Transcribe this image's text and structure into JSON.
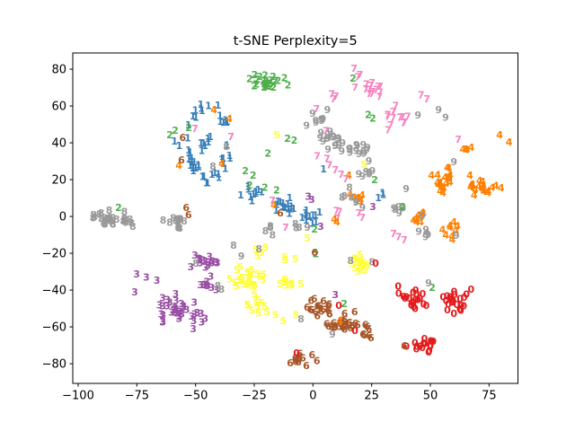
{
  "figure": {
    "background": "#ffffff",
    "frame_color": "#000000"
  },
  "chart_data": {
    "type": "scatter",
    "title": "t-SNE Perplexity=5",
    "xlabel": "",
    "ylabel": "",
    "grid": false,
    "legend": "none",
    "marker_style": "digit glyphs colored by class (Set1 palette, bold text markers)",
    "xlim": [
      -102.3,
      87.3
    ],
    "ylim": [
      -90.7,
      88.8
    ],
    "xticks": [
      -100,
      -75,
      -50,
      -25,
      0,
      25,
      50,
      75
    ],
    "yticks": [
      -80,
      -60,
      -40,
      -20,
      0,
      20,
      40,
      60,
      80
    ],
    "palette": {
      "0": "#e41a1c",
      "1": "#377eb8",
      "2": "#4daf4a",
      "3": "#984ea3",
      "4": "#ff7f00",
      "5": "#ffff33",
      "6": "#a65628",
      "7": "#f781bf",
      "8": "#999999",
      "9": "#999999"
    },
    "clusters": [
      {
        "d": "2",
        "x": -19.5,
        "y": 72.5,
        "sx": 8,
        "sy": 4,
        "n": 26
      },
      {
        "d": "1",
        "shape": "ring",
        "x": -44.5,
        "y": 40.5,
        "rx": 8.5,
        "ry": 19,
        "n": 46
      },
      {
        "d": "1",
        "x": -47,
        "y": 40,
        "sx": 2.5,
        "sy": 3,
        "n": 8
      },
      {
        "d": "1",
        "x": -24,
        "y": 13,
        "sx": 5,
        "sy": 3.5,
        "n": 10
      },
      {
        "d": "1",
        "x": -12,
        "y": 6.5,
        "sx": 6,
        "sy": 4.5,
        "n": 14
      },
      {
        "d": "1",
        "x": -2,
        "y": 0,
        "sx": 5,
        "sy": 4,
        "n": 12
      },
      {
        "d": "1",
        "x": 29.8,
        "y": 12,
        "sx": 1.8,
        "sy": 2.2,
        "n": 3
      },
      {
        "d": "3",
        "x": -58,
        "y": -51,
        "sx": 8,
        "sy": 6.5,
        "n": 34
      },
      {
        "d": "3",
        "x": -45,
        "y": -24,
        "sx": 6.5,
        "sy": 4,
        "n": 16
      },
      {
        "d": "3",
        "x": -43,
        "y": -36.5,
        "sx": 5,
        "sy": 4,
        "n": 9
      },
      {
        "d": "3",
        "x": -46.5,
        "y": -55.5,
        "sx": 2,
        "sy": 2,
        "n": 3
      },
      {
        "d": "5",
        "x": -28,
        "y": -33,
        "sx": 7,
        "sy": 6,
        "n": 26
      },
      {
        "d": "5",
        "x": -24,
        "y": -48,
        "sx": 4,
        "sy": 4,
        "n": 10
      },
      {
        "d": "5",
        "x": -10,
        "y": -36,
        "sx": 4.5,
        "sy": 3,
        "n": 8
      },
      {
        "d": "5",
        "x": -10,
        "y": -24,
        "sx": 3,
        "sy": 2.5,
        "n": 3
      },
      {
        "d": "5",
        "x": 21,
        "y": -25,
        "sx": 4.5,
        "sy": 3.5,
        "n": 15
      },
      {
        "d": "5",
        "x": -22.5,
        "y": -19,
        "sx": 3.5,
        "sy": 2.5,
        "n": 4
      },
      {
        "d": "4",
        "x": 55.5,
        "y": 20,
        "sx": 5,
        "sy": 6.5,
        "n": 20
      },
      {
        "d": "4",
        "x": 71,
        "y": 16,
        "sx": 6,
        "sy": 5,
        "n": 20
      },
      {
        "d": "4",
        "x": 46.5,
        "y": -0.5,
        "sx": 3.5,
        "sy": 4,
        "n": 9
      },
      {
        "d": "4",
        "x": 58,
        "y": -8.5,
        "sx": 3,
        "sy": 5,
        "n": 9
      },
      {
        "d": "4",
        "x": 65.5,
        "y": 37.5,
        "sx": 2.5,
        "sy": 2.5,
        "n": 4
      },
      {
        "d": "4",
        "x": 19,
        "y": 10.5,
        "sx": 3.5,
        "sy": 4,
        "n": 7
      },
      {
        "d": "7",
        "x": 24,
        "y": 70,
        "sx": 5.5,
        "sy": 6,
        "n": 15
      },
      {
        "d": "7",
        "x": 35,
        "y": 54,
        "sx": 5,
        "sy": 5.5,
        "n": 13
      },
      {
        "d": "7",
        "x": 10,
        "y": 65.5,
        "sx": 2.5,
        "sy": 3,
        "n": 3
      },
      {
        "d": "7",
        "x": 10.5,
        "y": 1.5,
        "sx": 2,
        "sy": 2.5,
        "n": 3
      },
      {
        "d": "8",
        "x": -85,
        "y": -1.5,
        "sx": 7.5,
        "sy": 4,
        "n": 30
      },
      {
        "d": "8",
        "x": -57.5,
        "y": -3.5,
        "sx": 5,
        "sy": 4,
        "n": 12
      },
      {
        "d": "9",
        "x": 8,
        "y": 42,
        "sx": 5,
        "sy": 5,
        "n": 16
      },
      {
        "d": "9",
        "x": 20,
        "y": 36,
        "sx": 6,
        "sy": 5,
        "n": 14
      },
      {
        "d": "9",
        "x": 23,
        "y": 23,
        "sx": 3.5,
        "sy": 3,
        "n": 6
      },
      {
        "d": "9",
        "x": 2,
        "y": 54,
        "sx": 4,
        "sy": 4.5,
        "n": 8
      },
      {
        "d": "8",
        "x": 14,
        "y": 12.5,
        "sx": 3,
        "sy": 3,
        "n": 4
      },
      {
        "d": "9",
        "x": 19,
        "y": 6,
        "sx": 2,
        "sy": 2.5,
        "n": 3
      },
      {
        "d": "9",
        "x": 37,
        "y": 3.5,
        "sx": 5,
        "sy": 3,
        "n": 5
      },
      {
        "d": "9",
        "x": 47,
        "y": -8,
        "sx": 4,
        "sy": 3.5,
        "n": 5
      },
      {
        "d": "8",
        "x": -16.5,
        "y": -7,
        "sx": 3,
        "sy": 2.5,
        "n": 4
      },
      {
        "d": "8",
        "x": -6,
        "y": -6.5,
        "sx": 2.5,
        "sy": 2,
        "n": 3
      },
      {
        "d": "6",
        "x": 2,
        "y": -50,
        "sx": 6,
        "sy": 5,
        "n": 16
      },
      {
        "d": "6",
        "x": 13,
        "y": -58,
        "sx": 7,
        "sy": 6,
        "n": 24
      },
      {
        "d": "6",
        "x": 22,
        "y": -62,
        "sx": 4,
        "sy": 5,
        "n": 8
      },
      {
        "d": "6",
        "x": -3,
        "y": -77,
        "sx": 5.5,
        "sy": 4,
        "n": 12
      },
      {
        "d": "0",
        "x": 43,
        "y": -44,
        "sx": 5.5,
        "sy": 6,
        "n": 20
      },
      {
        "d": "0",
        "x": 61,
        "y": -45,
        "sx": 6,
        "sy": 6.5,
        "n": 22
      },
      {
        "d": "0",
        "x": 46,
        "y": -71,
        "sx": 6,
        "sy": 4,
        "n": 16
      }
    ],
    "points": [
      [
        "2",
        -58.7,
        46.9
      ],
      [
        "2",
        -52.9,
        48.3
      ],
      [
        "2",
        -61,
        44.4
      ],
      [
        "2",
        -82.8,
        4.9
      ],
      [
        "2",
        -10.8,
        42.5
      ],
      [
        "2",
        -8,
        41.5
      ],
      [
        "2",
        -19.2,
        34.5
      ],
      [
        "2",
        17.1,
        75.1
      ],
      [
        "2",
        -28.8,
        24.9
      ],
      [
        "2",
        -25.5,
        22.5
      ],
      [
        "2",
        23.5,
        55.5
      ],
      [
        "2",
        25.5,
        53.5
      ],
      [
        "2",
        26.3,
        20
      ],
      [
        "2",
        -27,
        17
      ],
      [
        "2",
        -20.5,
        16
      ],
      [
        "2",
        -15.5,
        14.5
      ],
      [
        "2",
        0.7,
        -6.8
      ],
      [
        "2",
        1.2,
        -20.2
      ],
      [
        "2",
        13.3,
        -47.3
      ],
      [
        "2",
        38.2,
        5.4
      ],
      [
        "2",
        50.8,
        -38.5
      ],
      [
        "1",
        4.5,
        25.9
      ],
      [
        "1",
        -59,
        41
      ],
      [
        "1",
        -57,
        38.5
      ],
      [
        "3",
        -75.1,
        -31.2
      ],
      [
        "3",
        -71,
        -33
      ],
      [
        "3",
        -66.5,
        -34.5
      ],
      [
        "3",
        -75.9,
        -41
      ],
      [
        "3",
        25.5,
        5.4
      ],
      [
        "3",
        3.3,
        -5.4
      ],
      [
        "3",
        -0.5,
        9.3
      ],
      [
        "3",
        -2,
        11
      ],
      [
        "3",
        9.5,
        -42.4
      ],
      [
        "5",
        -15.4,
        44.4
      ],
      [
        "5",
        -2.4,
        -11.7
      ],
      [
        "5",
        21.7,
        28.3
      ],
      [
        "5",
        -19.6,
        -51.7
      ],
      [
        "5",
        -16,
        -53.5
      ],
      [
        "5",
        -12.7,
        -56.6
      ],
      [
        "5",
        -7.3,
        -53.5
      ],
      [
        "4",
        -42.2,
        58
      ],
      [
        "4",
        -35.7,
        53.2
      ],
      [
        "4",
        -38.8,
        28.8
      ],
      [
        "4",
        15.2,
        22.4
      ],
      [
        "4",
        -16.6,
        6.3
      ],
      [
        "4",
        11.4,
        -56.6
      ],
      [
        "4",
        9.1,
        -1.5
      ],
      [
        "4",
        10.2,
        -3
      ],
      [
        "4",
        -57.1,
        27.8
      ],
      [
        "4",
        79.5,
        44.5
      ],
      [
        "4",
        83.5,
        40.5
      ],
      [
        "7",
        17.5,
        80.5
      ],
      [
        "7",
        20,
        77
      ],
      [
        "7",
        46,
        66
      ],
      [
        "7",
        48.5,
        64
      ],
      [
        "7",
        61.9,
        42
      ],
      [
        "7",
        1.8,
        33
      ],
      [
        "7",
        7,
        28
      ],
      [
        "7",
        9.5,
        25.5
      ],
      [
        "7",
        12,
        23
      ],
      [
        "7",
        14,
        20.5
      ],
      [
        "7",
        6,
        31.5
      ],
      [
        "7",
        19.5,
        2
      ],
      [
        "7",
        21,
        -0.5
      ],
      [
        "7",
        34.3,
        -9.3
      ],
      [
        "7",
        36.5,
        -11
      ],
      [
        "7",
        38.9,
        -12.7
      ],
      [
        "7",
        -50.3,
        47.8
      ],
      [
        "7",
        -34.9,
        43.4
      ],
      [
        "7",
        5.5,
        46.5
      ],
      [
        "7",
        1.5,
        58.5
      ],
      [
        "7",
        -11.6,
        -5.9
      ],
      [
        "7",
        -17.3,
        8.8
      ],
      [
        "9",
        44.7,
        55.1
      ],
      [
        "9",
        53.5,
        58
      ],
      [
        "9",
        56.5,
        54
      ],
      [
        "9",
        46.6,
        0.5
      ],
      [
        "9",
        60,
        29.8
      ],
      [
        "9",
        39.7,
        15.1
      ],
      [
        "9",
        61,
        -10.3
      ],
      [
        "9",
        -2.4,
        -5.9
      ],
      [
        "8",
        -36.9,
        38
      ],
      [
        "8",
        -42.6,
        27.3
      ],
      [
        "8",
        16,
        -23.9
      ],
      [
        "8",
        25.2,
        -24.6
      ],
      [
        "8",
        -40.5,
        -37.5
      ],
      [
        "8",
        -39,
        -39.5
      ],
      [
        "8",
        -33.8,
        -15.6
      ],
      [
        "9",
        -30.5,
        -21.5
      ],
      [
        "8",
        -49.9,
        -25.4
      ],
      [
        "8",
        -23,
        -17.5
      ],
      [
        "8",
        -5.1,
        -55.6
      ],
      [
        "9",
        8.3,
        -63.9
      ],
      [
        "9",
        49.2,
        -36.1
      ],
      [
        "6",
        0.7,
        -19.5
      ],
      [
        "6",
        -56,
        30.7
      ],
      [
        "6",
        -55.5,
        43
      ],
      [
        "6",
        -54,
        5
      ],
      [
        "6",
        -53,
        1
      ],
      [
        "6",
        -13.9,
        2
      ],
      [
        "6",
        38.9,
        -70.2
      ],
      [
        "0",
        26.7,
        -25.4
      ],
      [
        "0",
        11,
        -48.3
      ],
      [
        "0",
        17.9,
        -62
      ],
      [
        "0",
        -7,
        -74
      ]
    ]
  }
}
